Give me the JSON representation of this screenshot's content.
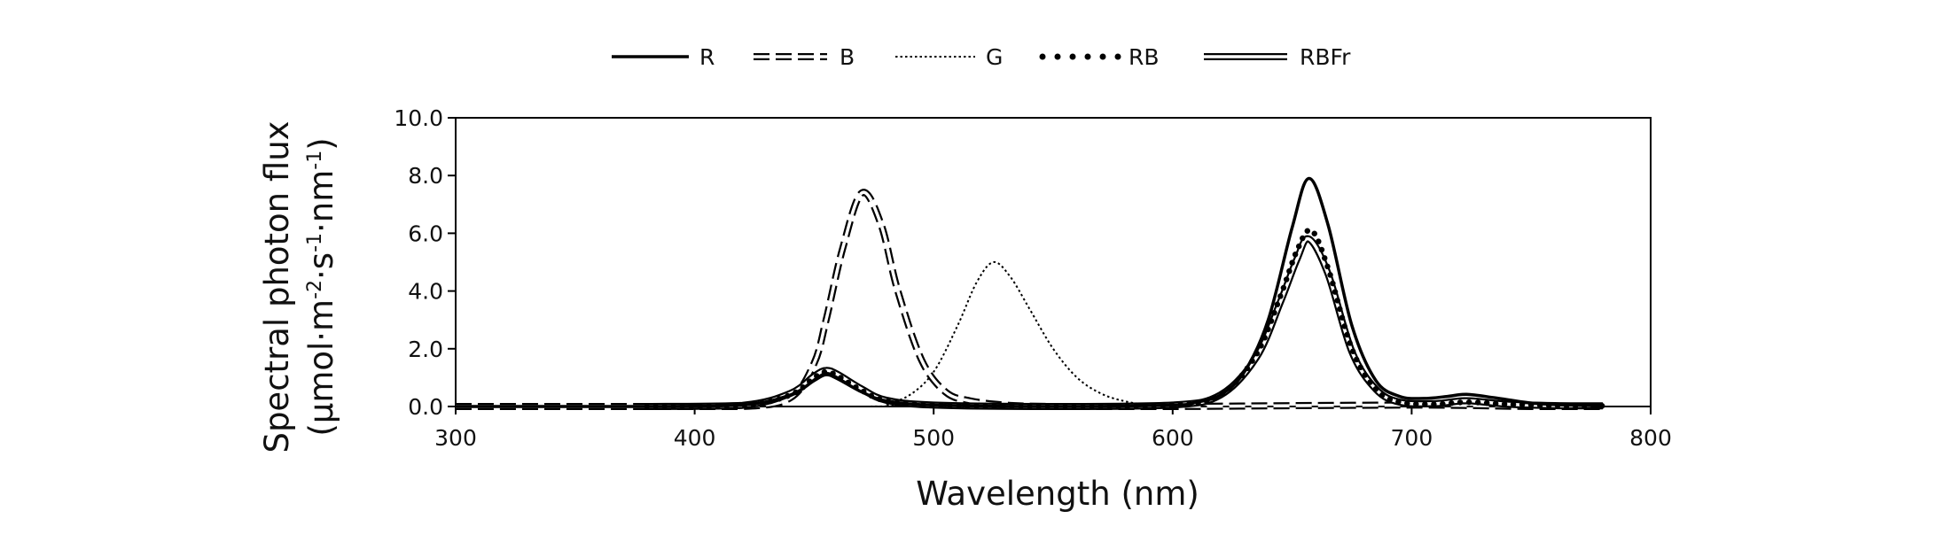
{
  "chart_data": {
    "type": "line",
    "title": "",
    "xlabel": "Wavelength (nm)",
    "ylabel_line1": "Spectral photon flux",
    "ylabel_line2_parts": [
      "(μmol·m",
      "-2",
      "·s",
      "-1",
      "·nm",
      "-1",
      ")"
    ],
    "xlim": [
      300,
      800
    ],
    "ylim": [
      0,
      10
    ],
    "x_ticks": [
      "300",
      "400",
      "500",
      "600",
      "700",
      "800"
    ],
    "y_ticks": [
      "0.0",
      "2.0",
      "4.0",
      "6.0",
      "8.0",
      "10.0"
    ],
    "grid": false,
    "legend_position": "top-center",
    "series": [
      {
        "name": "R",
        "style": "solid",
        "points": [
          [
            300,
            0
          ],
          [
            380,
            0
          ],
          [
            420,
            0.05
          ],
          [
            440,
            0.4
          ],
          [
            450,
            0.9
          ],
          [
            455,
            1.1
          ],
          [
            460,
            0.95
          ],
          [
            470,
            0.5
          ],
          [
            480,
            0.2
          ],
          [
            500,
            0.05
          ],
          [
            550,
            0
          ],
          [
            600,
            0.05
          ],
          [
            610,
            0.15
          ],
          [
            620,
            0.4
          ],
          [
            630,
            1.2
          ],
          [
            640,
            3.0
          ],
          [
            650,
            6.2
          ],
          [
            657,
            7.9
          ],
          [
            665,
            6.3
          ],
          [
            675,
            2.8
          ],
          [
            685,
            0.9
          ],
          [
            695,
            0.35
          ],
          [
            705,
            0.28
          ],
          [
            715,
            0.35
          ],
          [
            723,
            0.42
          ],
          [
            735,
            0.3
          ],
          [
            750,
            0.12
          ],
          [
            765,
            0.05
          ],
          [
            780,
            0.02
          ]
        ]
      },
      {
        "name": "B",
        "style": "dashed",
        "points": [
          [
            300,
            0
          ],
          [
            380,
            0
          ],
          [
            420,
            0
          ],
          [
            440,
            0.3
          ],
          [
            450,
            1.5
          ],
          [
            455,
            3.0
          ],
          [
            462,
            5.5
          ],
          [
            470,
            7.4
          ],
          [
            478,
            6.3
          ],
          [
            485,
            4.0
          ],
          [
            495,
            1.6
          ],
          [
            505,
            0.5
          ],
          [
            515,
            0.2
          ],
          [
            530,
            0.05
          ],
          [
            550,
            0
          ],
          [
            600,
            0
          ],
          [
            700,
            0.05
          ],
          [
            750,
            0
          ],
          [
            780,
            0
          ]
        ]
      },
      {
        "name": "G",
        "style": "dotted",
        "points": [
          [
            300,
            0
          ],
          [
            470,
            0
          ],
          [
            480,
            0.1
          ],
          [
            490,
            0.4
          ],
          [
            500,
            1.2
          ],
          [
            510,
            2.8
          ],
          [
            518,
            4.3
          ],
          [
            525,
            5.0
          ],
          [
            532,
            4.5
          ],
          [
            540,
            3.4
          ],
          [
            550,
            2.0
          ],
          [
            560,
            1.0
          ],
          [
            570,
            0.45
          ],
          [
            580,
            0.18
          ],
          [
            590,
            0.06
          ],
          [
            600,
            0.02
          ],
          [
            620,
            0
          ]
        ]
      },
      {
        "name": "RB",
        "style": "round-dots",
        "points": [
          [
            380,
            0
          ],
          [
            420,
            0.04
          ],
          [
            440,
            0.4
          ],
          [
            450,
            1.0
          ],
          [
            455,
            1.2
          ],
          [
            460,
            1.05
          ],
          [
            470,
            0.55
          ],
          [
            480,
            0.2
          ],
          [
            500,
            0.05
          ],
          [
            550,
            0
          ],
          [
            600,
            0.05
          ],
          [
            620,
            0.4
          ],
          [
            635,
            1.8
          ],
          [
            645,
            3.8
          ],
          [
            652,
            5.4
          ],
          [
            658,
            6.1
          ],
          [
            665,
            4.8
          ],
          [
            675,
            2.0
          ],
          [
            685,
            0.6
          ],
          [
            695,
            0.15
          ],
          [
            710,
            0.08
          ],
          [
            723,
            0.15
          ],
          [
            740,
            0.08
          ],
          [
            760,
            0.03
          ],
          [
            780,
            0.02
          ]
        ]
      },
      {
        "name": "RBFr",
        "style": "double",
        "points": [
          [
            380,
            0
          ],
          [
            420,
            0.04
          ],
          [
            440,
            0.45
          ],
          [
            450,
            1.05
          ],
          [
            455,
            1.25
          ],
          [
            460,
            1.1
          ],
          [
            470,
            0.6
          ],
          [
            480,
            0.22
          ],
          [
            500,
            0.05
          ],
          [
            550,
            0
          ],
          [
            600,
            0.05
          ],
          [
            620,
            0.4
          ],
          [
            635,
            1.7
          ],
          [
            645,
            3.6
          ],
          [
            652,
            5.1
          ],
          [
            657,
            5.8
          ],
          [
            665,
            4.6
          ],
          [
            675,
            1.9
          ],
          [
            685,
            0.6
          ],
          [
            695,
            0.15
          ],
          [
            710,
            0.1
          ],
          [
            723,
            0.2
          ],
          [
            740,
            0.08
          ],
          [
            760,
            0.03
          ],
          [
            780,
            0.02
          ]
        ]
      }
    ]
  }
}
